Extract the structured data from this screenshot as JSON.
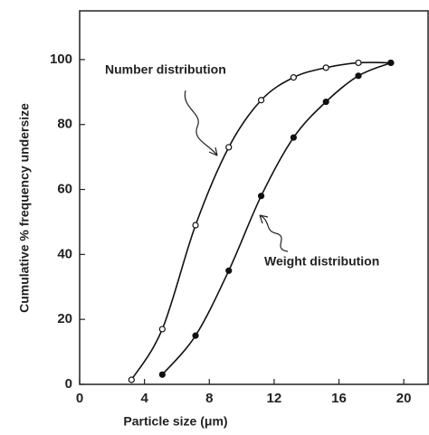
{
  "chart_data": {
    "type": "line",
    "x_label": "Particle size (μm)",
    "y_label": "Cumulative % frequency undersize",
    "xlim": [
      0,
      21.5
    ],
    "ylim": [
      0,
      115
    ],
    "xticks": [
      0,
      4,
      8,
      12,
      16,
      20
    ],
    "yticks": [
      0,
      20,
      40,
      60,
      80,
      100
    ],
    "series": [
      {
        "name": "Number distribution",
        "color": "#111111",
        "marker": "open",
        "x": [
          3.2,
          5.1,
          7.15,
          9.2,
          11.2,
          13.2,
          15.2,
          17.2,
          19.2
        ],
        "values": [
          1.4,
          17,
          49,
          73,
          87.5,
          94.5,
          97.5,
          99,
          99
        ]
      },
      {
        "name": "Weight distribution",
        "color": "#111111",
        "marker": "filled",
        "x": [
          5.1,
          7.15,
          9.2,
          11.2,
          13.2,
          15.2,
          17.2,
          19.2
        ],
        "values": [
          3,
          15,
          35,
          58,
          76,
          87,
          95,
          99
        ]
      }
    ]
  }
}
